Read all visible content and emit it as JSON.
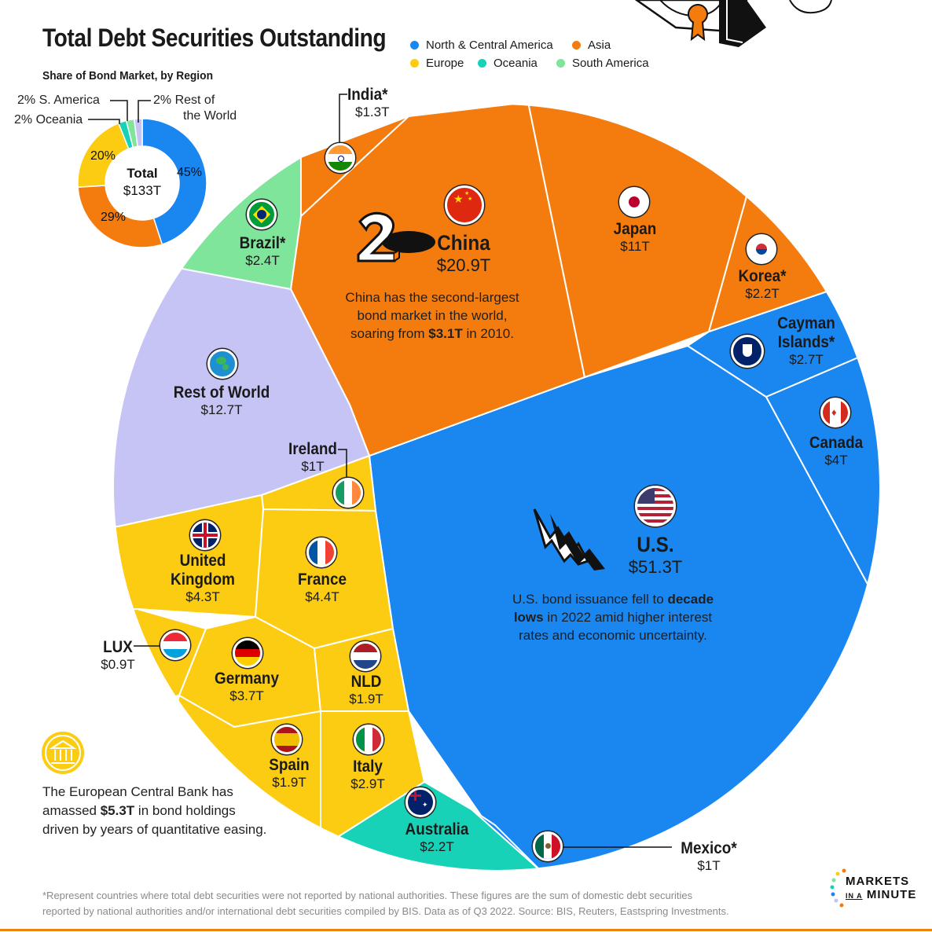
{
  "header": {
    "title": "Total Debt Securities Outstanding",
    "subtitle": "Share of Bond Market, by Region"
  },
  "colors": {
    "north_central_america": "#1a86f0",
    "asia": "#f47c0f",
    "europe": "#fccc12",
    "oceania": "#18d2b8",
    "south_america": "#7fe59a",
    "rest_of_world": "#c6c3f5"
  },
  "legend": [
    {
      "label": "North & Central America",
      "color": "#1a86f0"
    },
    {
      "label": "Asia",
      "color": "#f47c0f"
    },
    {
      "label": "Europe",
      "color": "#fccc12"
    },
    {
      "label": "Oceania",
      "color": "#18d2b8"
    },
    {
      "label": "South America",
      "color": "#7fe59a"
    }
  ],
  "chart_data": [
    {
      "type": "pie",
      "title": "Share of Bond Market, by Region",
      "center_label": "Total",
      "center_value": "$133T",
      "slices": [
        {
          "name": "North & Central America",
          "value": 45,
          "label": "45%",
          "color": "#1a86f0"
        },
        {
          "name": "Asia",
          "value": 29,
          "label": "29%",
          "color": "#f47c0f"
        },
        {
          "name": "Europe",
          "value": 20,
          "label": "20%",
          "color": "#fccc12"
        },
        {
          "name": "Oceania",
          "value": 2,
          "label": "2% Oceania",
          "color": "#18d2b8"
        },
        {
          "name": "South America",
          "value": 2,
          "label": "2% S. America",
          "color": "#7fe59a"
        },
        {
          "name": "Rest of the World",
          "value": 2,
          "label": "2% Rest of the World",
          "color": "#c6c3f5"
        }
      ]
    },
    {
      "type": "voronoi-treemap",
      "title": "Total Debt Securities Outstanding",
      "unit": "trillion USD",
      "cells": [
        {
          "name": "U.S.",
          "value": 51.3,
          "label": "$51.3T",
          "region": "North & Central America"
        },
        {
          "name": "China",
          "value": 20.9,
          "label": "$20.9T",
          "region": "Asia"
        },
        {
          "name": "Rest of World",
          "value": 12.7,
          "label": "$12.7T",
          "region": "Rest of World"
        },
        {
          "name": "Japan",
          "value": 11,
          "label": "$11T",
          "region": "Asia"
        },
        {
          "name": "France",
          "value": 4.4,
          "label": "$4.4T",
          "region": "Europe"
        },
        {
          "name": "United Kingdom",
          "value": 4.3,
          "label": "$4.3T",
          "region": "Europe"
        },
        {
          "name": "Canada",
          "value": 4,
          "label": "$4T",
          "region": "North & Central America"
        },
        {
          "name": "Germany",
          "value": 3.7,
          "label": "$3.7T",
          "region": "Europe"
        },
        {
          "name": "Italy",
          "value": 2.9,
          "label": "$2.9T",
          "region": "Europe"
        },
        {
          "name": "Cayman Islands*",
          "value": 2.7,
          "label": "$2.7T",
          "region": "North & Central America"
        },
        {
          "name": "Brazil*",
          "value": 2.4,
          "label": "$2.4T",
          "region": "South America"
        },
        {
          "name": "Korea*",
          "value": 2.2,
          "label": "$2.2T",
          "region": "Asia"
        },
        {
          "name": "Australia",
          "value": 2.2,
          "label": "$2.2T",
          "region": "Oceania"
        },
        {
          "name": "Spain",
          "value": 1.9,
          "label": "$1.9T",
          "region": "Europe"
        },
        {
          "name": "NLD",
          "value": 1.9,
          "label": "$1.9T",
          "region": "Europe"
        },
        {
          "name": "India*",
          "value": 1.3,
          "label": "$1.3T",
          "region": "Asia"
        },
        {
          "name": "Ireland",
          "value": 1,
          "label": "$1T",
          "region": "Europe"
        },
        {
          "name": "Mexico*",
          "value": 1,
          "label": "$1T",
          "region": "North & Central America"
        },
        {
          "name": "LUX",
          "value": 0.9,
          "label": "$0.9T",
          "region": "Europe"
        }
      ]
    }
  ],
  "donut": {
    "total_label": "Total",
    "total_value": "$133T",
    "pct_na": "45%",
    "pct_asia": "29%",
    "pct_europe": "20%",
    "lbl_s_america": "2% S. America",
    "lbl_oceania": "2% Oceania",
    "lbl_row_1": "2% Rest of",
    "lbl_row_2": "the World"
  },
  "labels": {
    "india": {
      "name": "India*",
      "value": "$1.3T"
    },
    "china": {
      "name": "China",
      "value": "$20.9T"
    },
    "japan": {
      "name": "Japan",
      "value": "$11T"
    },
    "korea": {
      "name": "Korea*",
      "value": "$2.2T"
    },
    "cayman": {
      "name1": "Cayman",
      "name2": "Islands*",
      "value": "$2.7T"
    },
    "canada": {
      "name": "Canada",
      "value": "$4T"
    },
    "brazil": {
      "name": "Brazil*",
      "value": "$2.4T"
    },
    "row": {
      "name": "Rest of World",
      "value": "$12.7T"
    },
    "ireland": {
      "name": "Ireland",
      "value": "$1T"
    },
    "us": {
      "name": "U.S.",
      "value": "$51.3T"
    },
    "uk": {
      "name1": "United",
      "name2": "Kingdom",
      "value": "$4.3T"
    },
    "france": {
      "name": "France",
      "value": "$4.4T"
    },
    "lux": {
      "name": "LUX",
      "value": "$0.9T"
    },
    "germany": {
      "name": "Germany",
      "value": "$3.7T"
    },
    "nld": {
      "name": "NLD",
      "value": "$1.9T"
    },
    "spain": {
      "name": "Spain",
      "value": "$1.9T"
    },
    "italy": {
      "name": "Italy",
      "value": "$2.9T"
    },
    "australia": {
      "name": "Australia",
      "value": "$2.2T"
    },
    "mexico": {
      "name": "Mexico*",
      "value": "$1T"
    }
  },
  "notes": {
    "china_1": "China has the second-largest",
    "china_2": "bond market in the world,",
    "china_3a": "soaring from ",
    "china_3b": "$3.1T",
    "china_3c": " in 2010.",
    "us_1a": "U.S. bond issuance fell to ",
    "us_1b": "decade",
    "us_2a": "lows",
    "us_2b": " in 2022 amid higher interest",
    "us_3": "rates and economic uncertainty.",
    "ecb_1": "The European Central Bank has",
    "ecb_2a": "amassed ",
    "ecb_2b": "$5.3T",
    "ecb_2c": " in bond holdings",
    "ecb_3": "driven by years of quantitative easing."
  },
  "footnote": {
    "line1": "*Represent countries where total debt securities were not reported by national authorities. These figures are the sum of domestic debt securities",
    "line2": "reported by national authorities and/or international debt securities compiled by BIS. Data as of Q3 2022. Source: BIS, Reuters, Eastspring Investments."
  },
  "logo": {
    "line1": "MARKETS",
    "line2": "IN A",
    "line3": "MINUTE"
  }
}
